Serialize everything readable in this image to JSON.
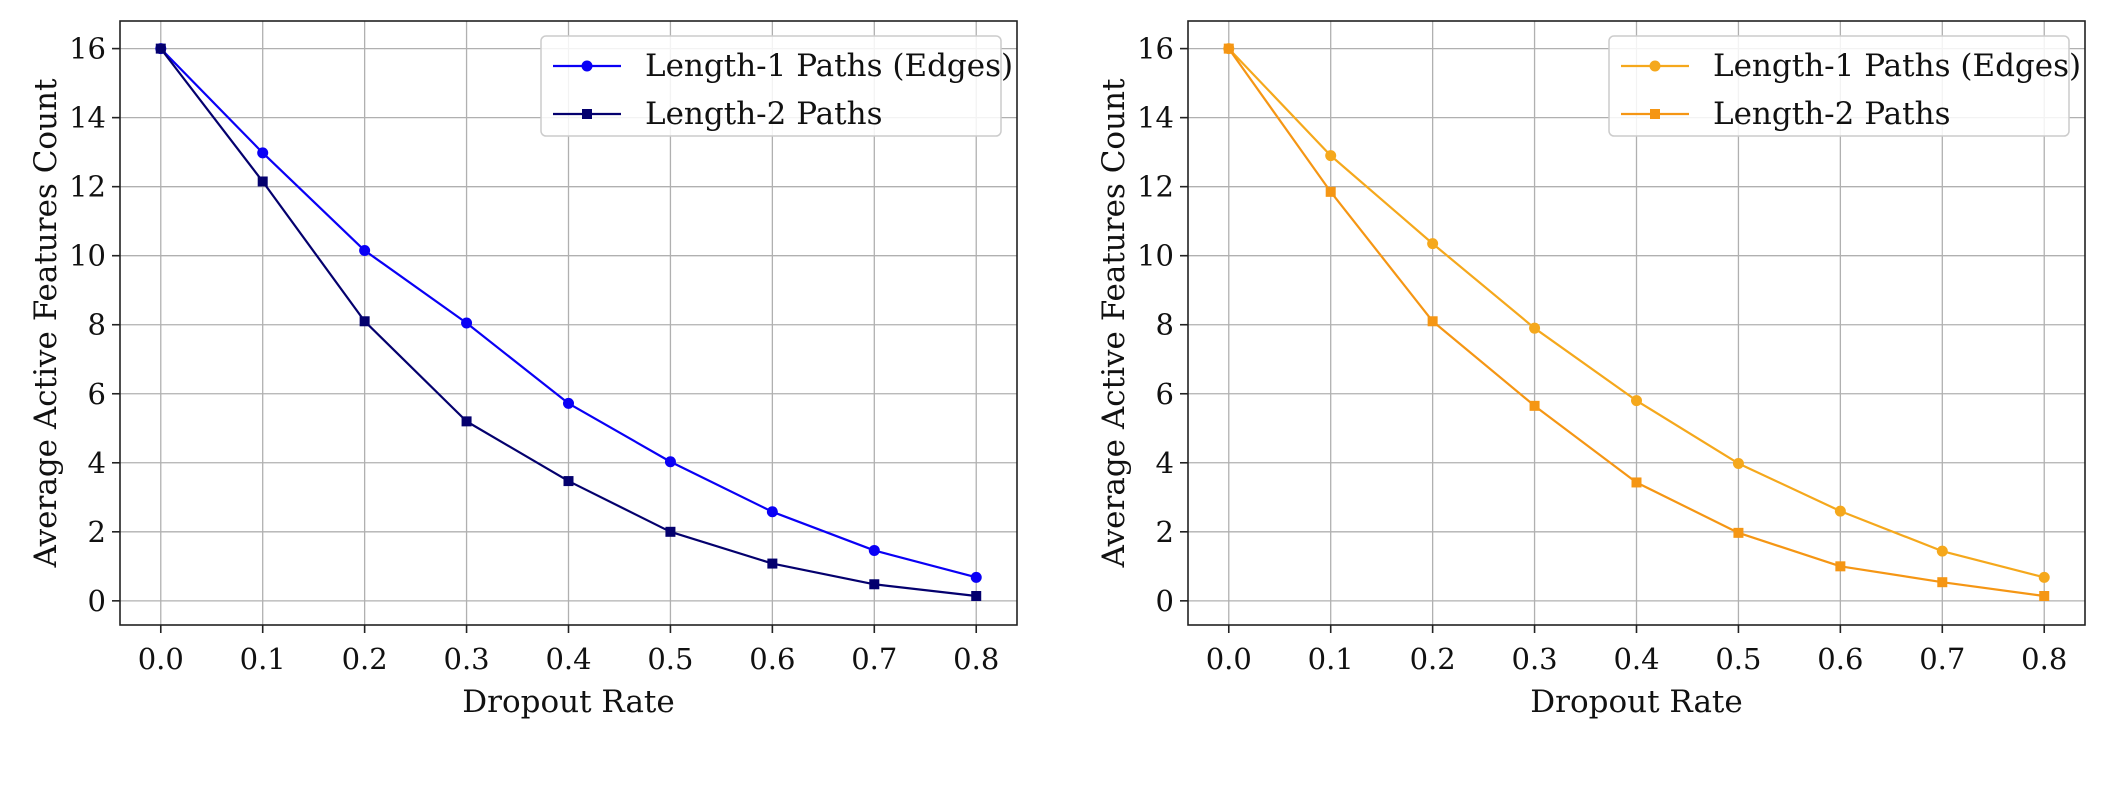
{
  "chart_data": [
    {
      "type": "line",
      "title": "",
      "xlabel": "Dropout Rate",
      "ylabel": "Average Active Features Count",
      "x": [
        0.0,
        0.1,
        0.2,
        0.3,
        0.4,
        0.5,
        0.6,
        0.7,
        0.8
      ],
      "x_tick_labels": [
        "0.0",
        "0.1",
        "0.2",
        "0.3",
        "0.4",
        "0.5",
        "0.6",
        "0.7",
        "0.8"
      ],
      "y_ticks": [
        0,
        2,
        4,
        6,
        8,
        10,
        12,
        14,
        16
      ],
      "y_tick_labels": [
        "0",
        "2",
        "4",
        "6",
        "8",
        "10",
        "12",
        "14",
        "16"
      ],
      "xlim": [
        -0.04,
        0.84
      ],
      "ylim": [
        -0.7,
        16.8
      ],
      "grid": true,
      "legend_position": "top-right",
      "series": [
        {
          "name": "Length-1 Paths (Edges)",
          "color": "#0a00f5",
          "marker": "circle",
          "values": [
            16.0,
            12.98,
            10.15,
            8.05,
            5.72,
            4.03,
            2.58,
            1.46,
            0.68
          ]
        },
        {
          "name": "Length-2 Paths",
          "color": "#04006e",
          "marker": "square",
          "values": [
            16.0,
            12.15,
            8.1,
            5.2,
            3.47,
            2.0,
            1.08,
            0.48,
            0.14
          ]
        }
      ]
    },
    {
      "type": "line",
      "title": "",
      "xlabel": "Dropout Rate",
      "ylabel": "Average Active Features Count",
      "x": [
        0.0,
        0.1,
        0.2,
        0.3,
        0.4,
        0.5,
        0.6,
        0.7,
        0.8
      ],
      "x_tick_labels": [
        "0.0",
        "0.1",
        "0.2",
        "0.3",
        "0.4",
        "0.5",
        "0.6",
        "0.7",
        "0.8"
      ],
      "y_ticks": [
        0,
        2,
        4,
        6,
        8,
        10,
        12,
        14,
        16
      ],
      "y_tick_labels": [
        "0",
        "2",
        "4",
        "6",
        "8",
        "10",
        "12",
        "14",
        "16"
      ],
      "xlim": [
        -0.04,
        0.84
      ],
      "ylim": [
        -0.7,
        16.8
      ],
      "grid": true,
      "legend_position": "top-right",
      "series": [
        {
          "name": "Length-1 Paths (Edges)",
          "color": "#f5a81c",
          "marker": "circle",
          "values": [
            16.0,
            12.9,
            10.35,
            7.9,
            5.8,
            3.98,
            2.6,
            1.44,
            0.68
          ]
        },
        {
          "name": "Length-2 Paths",
          "color": "#f59614",
          "marker": "square",
          "values": [
            16.0,
            11.85,
            8.1,
            5.65,
            3.43,
            1.97,
            1.0,
            0.54,
            0.14
          ]
        }
      ]
    }
  ]
}
